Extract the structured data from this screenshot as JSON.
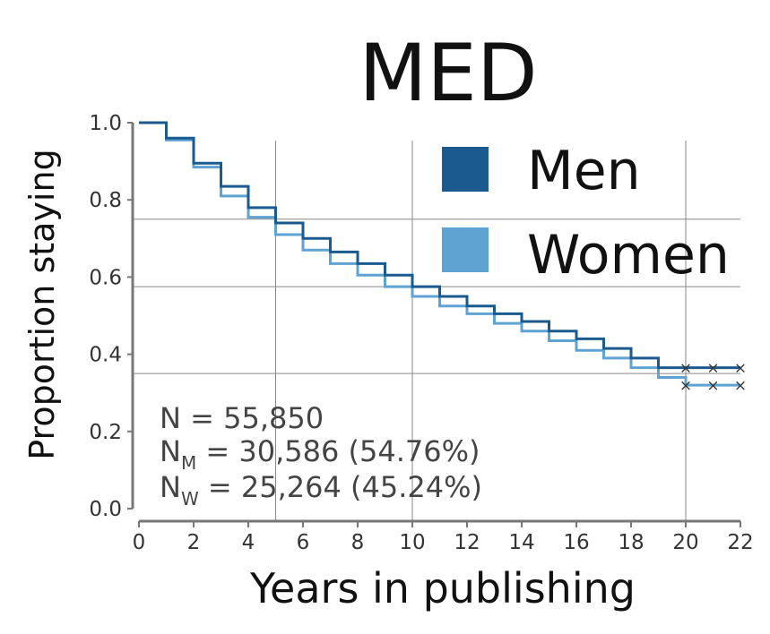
{
  "chart_data": {
    "type": "line",
    "step": true,
    "title": "MED",
    "xlabel": "Years in publishing",
    "ylabel": "Proportion staying",
    "xlim": [
      0,
      22
    ],
    "ylim": [
      0,
      1.0
    ],
    "xticks": [
      0,
      2,
      4,
      6,
      8,
      10,
      12,
      14,
      16,
      18,
      20,
      22
    ],
    "yticks": [
      "0.0",
      "0.2",
      "0.4",
      "0.6",
      "0.8",
      "1.0"
    ],
    "legend_position": "top-right",
    "x": [
      0,
      1,
      2,
      3,
      4,
      5,
      6,
      7,
      8,
      9,
      10,
      11,
      12,
      13,
      14,
      15,
      16,
      17,
      18,
      19,
      20,
      21,
      22
    ],
    "series": [
      {
        "name": "Men",
        "color": "#1a5a8e",
        "values": [
          1.0,
          0.96,
          0.895,
          0.835,
          0.78,
          0.74,
          0.7,
          0.665,
          0.635,
          0.605,
          0.575,
          0.55,
          0.525,
          0.505,
          0.485,
          0.46,
          0.44,
          0.415,
          0.39,
          0.365,
          0.365,
          0.365,
          0.365
        ]
      },
      {
        "name": "Women",
        "color": "#5fa3d3",
        "values": [
          1.0,
          0.955,
          0.885,
          0.81,
          0.755,
          0.71,
          0.67,
          0.635,
          0.605,
          0.575,
          0.55,
          0.525,
          0.505,
          0.48,
          0.46,
          0.435,
          0.41,
          0.39,
          0.365,
          0.34,
          0.32,
          0.32,
          0.32
        ]
      }
    ],
    "censor_markers": {
      "symbol": "×",
      "x": [
        20,
        21,
        22
      ]
    },
    "reference_lines": {
      "color": "#888888",
      "y": [
        0.75,
        0.575,
        0.35
      ],
      "x": [
        5,
        10,
        20
      ]
    },
    "annotation": {
      "total": "N = 55,850",
      "men": {
        "main": "N",
        "sub": "M",
        "rest": " = 30,586 (54.76%)"
      },
      "women": {
        "main": "N",
        "sub": "W",
        "rest": " = 25,264 (45.24%)"
      }
    }
  }
}
